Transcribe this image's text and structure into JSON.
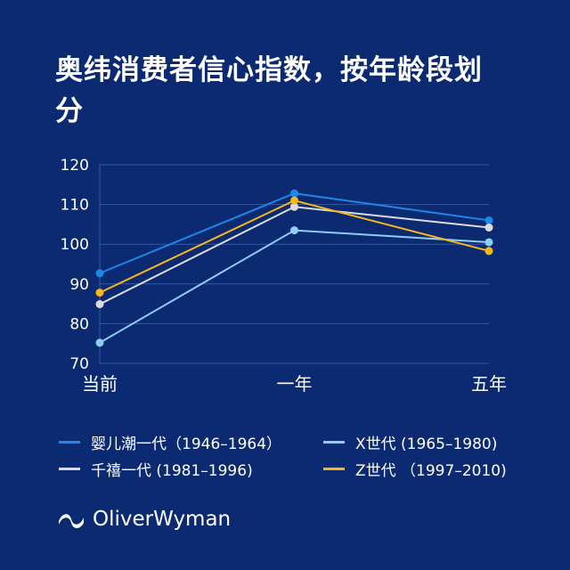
{
  "title": "奥纬消费者信心指数，按年龄段划分",
  "brand": "OliverWyman",
  "colors": {
    "background": "#0b2a72",
    "grid": "#2f5aa8"
  },
  "chart_data": {
    "type": "line",
    "categories": [
      "当前",
      "一年",
      "五年"
    ],
    "ylim": [
      70,
      120
    ],
    "yticks": [
      70,
      80,
      90,
      100,
      110,
      120
    ],
    "grid": true,
    "legend": "bottom",
    "series": [
      {
        "name": "婴儿潮一代（1946–1964）",
        "color": "#1e88e5",
        "values": [
          92.7,
          112.8,
          106.0
        ]
      },
      {
        "name": "X世代 (1965–1980)",
        "color": "#8fcdf7",
        "values": [
          75.2,
          103.5,
          100.5
        ]
      },
      {
        "name": "千禧一代 (1981–1996)",
        "color": "#dcdcdc",
        "values": [
          84.9,
          109.4,
          104.2
        ]
      },
      {
        "name": "Z世代 （1997–2010)",
        "color": "#f5b71a",
        "values": [
          87.8,
          111.0,
          98.3
        ]
      }
    ]
  }
}
